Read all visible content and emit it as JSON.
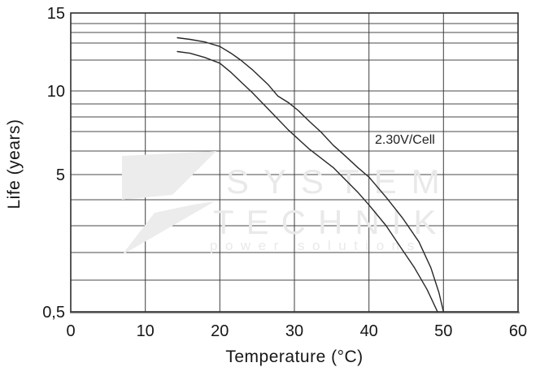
{
  "chart_data": {
    "type": "line",
    "title": "",
    "xlabel": "Temperature (°C)",
    "ylabel": "Life (years)",
    "annotation": "2.30V/Cell",
    "x_axis": {
      "ticks": [
        0,
        10,
        20,
        30,
        40,
        50,
        60
      ],
      "tick_labels": [
        "0",
        "10",
        "20",
        "30",
        "40",
        "50",
        "60"
      ],
      "range": [
        0,
        60
      ]
    },
    "y_axis": {
      "type": "pseudo-log",
      "range": [
        0.5,
        15
      ],
      "tick_labels": [
        {
          "value": 15,
          "label": "15"
        },
        {
          "value": 10,
          "label": "10"
        },
        {
          "value": 5,
          "label": "5"
        },
        {
          "value": 0.5,
          "label": "0,5"
        }
      ],
      "gridline_values": [
        15,
        14,
        13,
        12,
        11,
        10,
        9,
        8,
        7,
        6,
        5,
        4,
        3,
        2,
        1,
        0.5
      ]
    },
    "grid": true,
    "legend": "none",
    "series": [
      {
        "name": "2.30V/Cell upper curve",
        "points": [
          [
            14.3,
            12.5
          ],
          [
            16,
            12.35
          ],
          [
            18,
            12.1
          ],
          [
            20,
            11.8
          ],
          [
            21.5,
            11.4
          ],
          [
            22.8,
            11.0
          ],
          [
            24.3,
            10.7
          ],
          [
            26.5,
            10.2
          ],
          [
            27.8,
            9.6
          ],
          [
            29.2,
            9.1
          ],
          [
            30.5,
            8.5
          ],
          [
            32,
            7.7
          ],
          [
            33.5,
            7.0
          ],
          [
            35.2,
            6.3
          ],
          [
            36.8,
            5.8
          ],
          [
            38.5,
            5.3
          ],
          [
            40,
            4.9
          ],
          [
            42.3,
            4.1
          ],
          [
            44.5,
            3.3
          ],
          [
            46.7,
            2.4
          ],
          [
            48.3,
            1.45
          ],
          [
            49.4,
            0.8
          ],
          [
            50,
            0.5
          ]
        ]
      },
      {
        "name": "2.30V/Cell lower curve",
        "points": [
          [
            14.3,
            11.5
          ],
          [
            16,
            11.4
          ],
          [
            18,
            11.15
          ],
          [
            20,
            10.9
          ],
          [
            21.5,
            10.6
          ],
          [
            22.8,
            10.3
          ],
          [
            24.3,
            9.9
          ],
          [
            26.5,
            8.6
          ],
          [
            29.2,
            7.1
          ],
          [
            32,
            6.1
          ],
          [
            35.2,
            5.3
          ],
          [
            38.5,
            4.3
          ],
          [
            40,
            3.8
          ],
          [
            42.3,
            3.0
          ],
          [
            44,
            2.3
          ],
          [
            46.1,
            1.45
          ],
          [
            47.8,
            0.85
          ],
          [
            49.2,
            0.5
          ]
        ]
      }
    ],
    "watermark": {
      "brand_line1": "SYSTEM",
      "brand_line2": "TECHNIK",
      "tagline": "power solutions"
    },
    "colors": {
      "curve": "#272727",
      "gridline": "#484848",
      "text": "#161616",
      "watermark": "#e9e9e9",
      "background": "#ffffff"
    }
  }
}
